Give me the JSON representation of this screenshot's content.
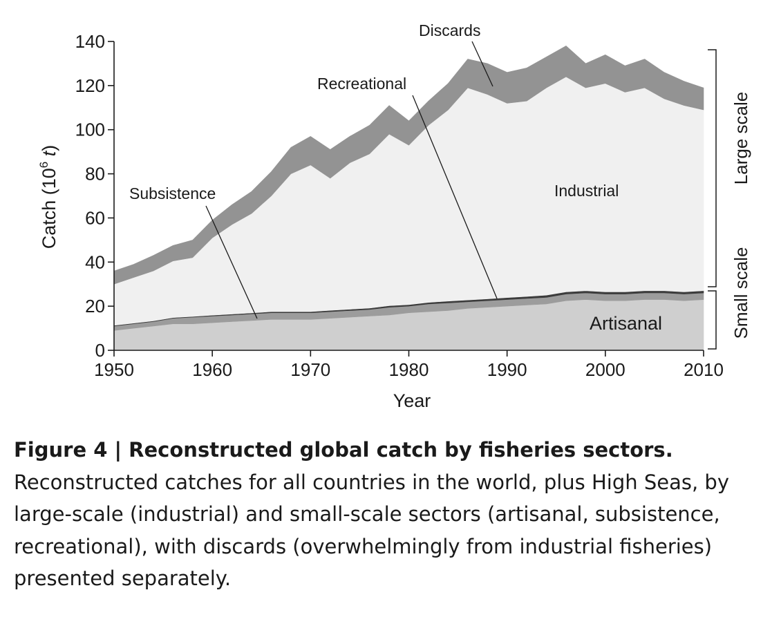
{
  "chart_data": {
    "type": "area",
    "stacked": true,
    "xlabel": "Year",
    "ylabel_main": "Catch (10",
    "ylabel_exp": "6",
    "ylabel_unit": "t",
    "ylabel_close": ")",
    "xlim": [
      1950,
      2010
    ],
    "ylim": [
      0,
      140
    ],
    "x_ticks": [
      "1950",
      "1960",
      "1970",
      "1980",
      "1990",
      "2000",
      "2010"
    ],
    "y_ticks": [
      "0",
      "20",
      "40",
      "60",
      "80",
      "100",
      "120",
      "140"
    ],
    "x": [
      1950,
      1952,
      1954,
      1956,
      1958,
      1960,
      1962,
      1964,
      1966,
      1968,
      1970,
      1972,
      1974,
      1976,
      1978,
      1980,
      1982,
      1984,
      1986,
      1988,
      1990,
      1992,
      1994,
      1996,
      1998,
      2000,
      2002,
      2004,
      2006,
      2008,
      2010
    ],
    "series": [
      {
        "name": "Artisanal",
        "values": [
          9,
          10,
          11,
          12,
          12,
          12.5,
          13,
          13.5,
          14,
          14,
          14,
          14.5,
          15,
          15.5,
          16,
          17,
          17.5,
          18,
          19,
          19.5,
          20,
          20.5,
          21,
          22.5,
          23,
          22.5,
          22.5,
          23,
          23,
          22.5,
          23
        ]
      },
      {
        "name": "Subsistence",
        "values": [
          2,
          2,
          2,
          2.5,
          3,
          3,
          3,
          3,
          3,
          3,
          3,
          3,
          3,
          3,
          3.5,
          3,
          3.5,
          3.5,
          3,
          3,
          3,
          3,
          3,
          3,
          3,
          3,
          3,
          3,
          3,
          3,
          3
        ]
      },
      {
        "name": "Recreational",
        "values": [
          0.3,
          0.3,
          0.3,
          0.3,
          0.3,
          0.4,
          0.4,
          0.4,
          0.5,
          0.5,
          0.5,
          0.6,
          0.6,
          0.6,
          0.7,
          0.7,
          0.7,
          0.8,
          0.8,
          0.8,
          0.9,
          0.9,
          1,
          1,
          1,
          1,
          1,
          1,
          1,
          1,
          1
        ]
      },
      {
        "name": "Industrial",
        "values": [
          18.7,
          20.7,
          22.7,
          25.7,
          26.7,
          35.1,
          40.6,
          45.1,
          52.5,
          62.5,
          66.5,
          59.9,
          66.4,
          69.9,
          77.8,
          72.3,
          80.3,
          86.7,
          96.2,
          92.7,
          88.1,
          88.6,
          94,
          97.5,
          92,
          94.5,
          90.5,
          92,
          87,
          84.5,
          82
        ]
      },
      {
        "name": "Discards",
        "values": [
          6,
          6,
          7,
          7,
          8,
          8,
          9,
          10,
          11,
          12,
          13,
          13,
          12,
          13,
          13,
          11,
          11,
          12,
          13,
          14,
          14,
          15,
          14,
          14,
          11,
          13,
          12,
          13,
          12,
          11,
          10
        ]
      }
    ],
    "annotations": [
      "Discards",
      "Recreational",
      "Subsistence",
      "Industrial",
      "Artisanal"
    ],
    "side_labels": [
      "Large scale",
      "Small scale"
    ],
    "colors": {
      "Artisanal": "#cfcfcf",
      "Subsistence": "#9c9c9c",
      "Recreational": "#3c3c3c",
      "Industrial": "#f0f0f0",
      "Discards": "#939393"
    }
  },
  "caption": {
    "bold": "Figure 4 | Reconstructed global catch by fisheries sectors.",
    "text": " Reconstructed catches for all countries in the world, plus High Seas, by large-scale (industrial) and small-scale sectors (artisanal, subsistence, recreational), with discards (overwhelmingly from industrial fisheries) presented separately."
  }
}
